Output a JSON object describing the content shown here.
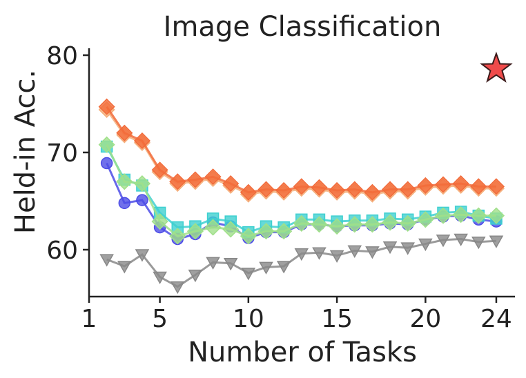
{
  "chart_data": {
    "type": "line",
    "title": "Image Classification",
    "xlabel": "Number of Tasks",
    "ylabel": "Held-in Acc.",
    "xlim": [
      1,
      25
    ],
    "ylim": [
      55,
      81
    ],
    "xticks": [
      1,
      5,
      10,
      15,
      20,
      24
    ],
    "yticks": [
      60,
      70,
      80
    ],
    "grid": false,
    "legend": "none",
    "star": {
      "x": 24,
      "y": 78.6,
      "color": "#f04b4b"
    },
    "x": [
      2,
      3,
      4,
      5,
      6,
      7,
      8,
      9,
      10,
      11,
      12,
      13,
      14,
      15,
      16,
      17,
      18,
      19,
      20,
      21,
      22,
      23,
      24
    ],
    "series": [
      {
        "color": "#888888",
        "marker": "triangle-down",
        "values": [
          59.0,
          58.3,
          59.5,
          57.2,
          56.2,
          57.4,
          58.7,
          58.6,
          57.6,
          58.2,
          58.3,
          59.6,
          59.7,
          59.4,
          59.9,
          59.8,
          60.3,
          60.2,
          60.6,
          61.0,
          61.1,
          60.8,
          60.9
        ]
      },
      {
        "color": "#4c4ce6",
        "marker": "circle",
        "values": [
          68.9,
          64.8,
          65.1,
          62.3,
          61.1,
          61.6,
          62.8,
          62.4,
          61.2,
          61.8,
          61.8,
          62.6,
          62.6,
          62.4,
          62.5,
          62.5,
          62.7,
          62.6,
          63.1,
          63.4,
          63.5,
          63.1,
          62.9
        ]
      },
      {
        "color": "#3ed0d0",
        "marker": "square",
        "values": [
          70.6,
          67.2,
          66.6,
          63.8,
          62.3,
          62.4,
          63.2,
          62.9,
          61.8,
          62.4,
          62.3,
          63.1,
          63.1,
          62.9,
          63.0,
          63.0,
          63.2,
          63.1,
          63.4,
          63.8,
          63.9,
          63.5,
          63.2
        ]
      },
      {
        "color": "#a0e08a",
        "marker": "diamond",
        "values": [
          70.8,
          67.0,
          66.8,
          62.9,
          61.4,
          61.9,
          62.3,
          62.1,
          61.4,
          61.9,
          61.9,
          62.7,
          62.6,
          62.4,
          62.6,
          62.6,
          62.8,
          62.7,
          63.1,
          63.5,
          63.6,
          63.5,
          63.5
        ]
      },
      {
        "color": "#f5ae7a",
        "marker": "diamond",
        "values": [
          74.4,
          71.8,
          71.0,
          68.0,
          66.8,
          67.0,
          67.3,
          66.6,
          65.7,
          66.0,
          65.9,
          66.3,
          66.2,
          65.9,
          66.0,
          65.7,
          66.0,
          66.0,
          66.4,
          66.5,
          66.6,
          66.3,
          66.3
        ]
      },
      {
        "color": "#f26b3a",
        "marker": "diamond",
        "values": [
          74.7,
          72.0,
          71.2,
          68.2,
          67.0,
          67.2,
          67.5,
          66.8,
          65.9,
          66.2,
          66.1,
          66.5,
          66.4,
          66.1,
          66.2,
          65.9,
          66.2,
          66.2,
          66.6,
          66.7,
          66.8,
          66.5,
          66.5
        ]
      }
    ]
  }
}
